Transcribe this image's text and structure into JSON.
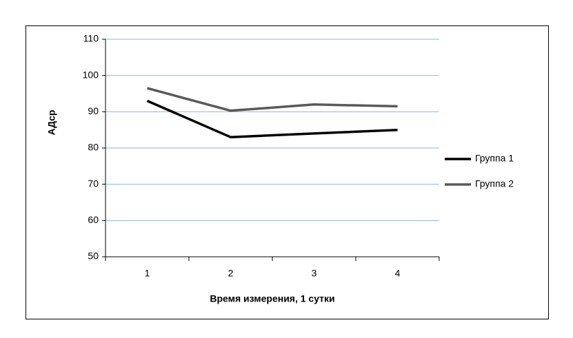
{
  "chart_data": {
    "type": "line",
    "y_label": "АДср",
    "x_label": "Время измерения, 1 сутки",
    "categories": [
      "1",
      "2",
      "3",
      "4"
    ],
    "series": [
      {
        "name": "Группа 1",
        "color": "#000000",
        "values": [
          93,
          83,
          84,
          85
        ]
      },
      {
        "name": "Группа 2",
        "color": "#595959",
        "values": [
          96.5,
          90.3,
          92,
          91.5
        ]
      }
    ],
    "ylim": [
      50,
      110
    ],
    "yticks": [
      50,
      60,
      70,
      80,
      90,
      100,
      110
    ],
    "grid": true,
    "legend": "right"
  }
}
